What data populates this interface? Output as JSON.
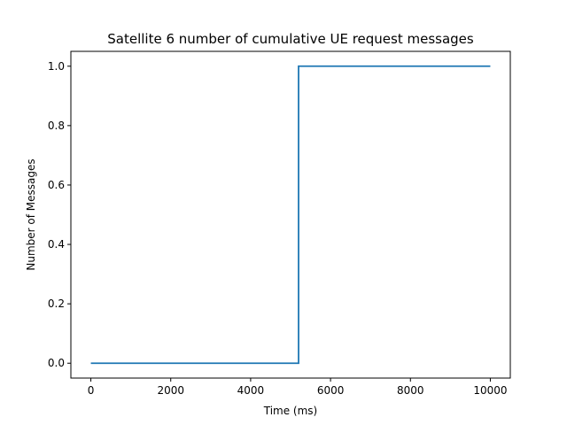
{
  "chart_data": {
    "type": "line",
    "title": "Satellite 6 number of cumulative UE request messages",
    "xlabel": "Time (ms)",
    "ylabel": "Number of Messages",
    "xlim": [
      -500,
      10500
    ],
    "ylim": [
      -0.05,
      1.05
    ],
    "xticks": [
      0,
      2000,
      4000,
      6000,
      8000,
      10000
    ],
    "yticks": [
      0.0,
      0.2,
      0.4,
      0.6,
      0.8,
      1.0
    ],
    "xtick_labels": [
      "0",
      "2000",
      "4000",
      "6000",
      "8000",
      "10000"
    ],
    "ytick_labels": [
      "0.0",
      "0.2",
      "0.4",
      "0.6",
      "0.8",
      "1.0"
    ],
    "grid": false,
    "series": [
      {
        "color": "#1f77b4",
        "x": [
          0,
          5200,
          5200,
          10000
        ],
        "y": [
          0,
          0,
          1,
          1
        ]
      }
    ]
  }
}
